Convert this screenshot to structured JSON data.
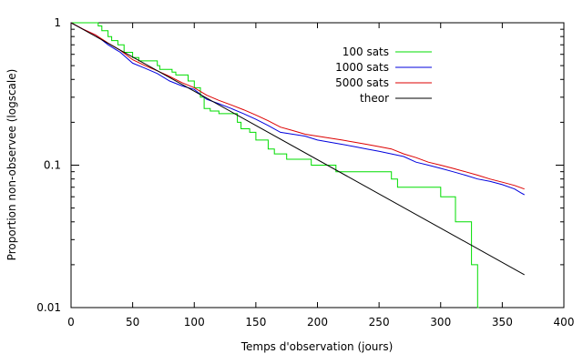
{
  "chart_data": {
    "type": "line",
    "xlabel": "Temps d'observation (jours)",
    "ylabel": "Proportion non-observee (logscale)",
    "xlim": [
      0,
      400
    ],
    "ylim": [
      0.01,
      1
    ],
    "yscale": "log",
    "grid": false,
    "legend_position": "top-right",
    "x_ticks": [
      0,
      50,
      100,
      150,
      200,
      250,
      300,
      350,
      400
    ],
    "x_tick_labels": [
      "0",
      "50",
      "100",
      "150",
      "200",
      "250",
      "300",
      "350",
      "400"
    ],
    "y_ticks": [
      0.01,
      0.1,
      1
    ],
    "y_tick_labels": [
      "0.01",
      "0.1",
      "1"
    ],
    "series": [
      {
        "name": "100 sats",
        "color": "#00dd00",
        "step": true,
        "x": [
          0,
          22,
          25,
          30,
          33,
          38,
          43,
          50,
          55,
          70,
          72,
          82,
          85,
          95,
          100,
          105,
          108,
          113,
          120,
          135,
          138,
          145,
          150,
          160,
          165,
          175,
          190,
          195,
          200,
          215,
          220,
          260,
          262,
          265,
          300,
          305,
          312,
          320,
          325,
          330,
          331
        ],
        "y": [
          1.0,
          0.95,
          0.88,
          0.8,
          0.75,
          0.7,
          0.62,
          0.57,
          0.54,
          0.5,
          0.47,
          0.45,
          0.43,
          0.39,
          0.35,
          0.3,
          0.25,
          0.24,
          0.23,
          0.2,
          0.18,
          0.17,
          0.15,
          0.13,
          0.12,
          0.11,
          0.11,
          0.1,
          0.1,
          0.09,
          0.09,
          0.08,
          0.08,
          0.07,
          0.06,
          0.06,
          0.04,
          0.04,
          0.02,
          0.01,
          0.008
        ]
      },
      {
        "name": "1000 sats",
        "color": "#0000dd",
        "x": [
          0,
          10,
          20,
          30,
          40,
          50,
          60,
          70,
          80,
          90,
          100,
          110,
          120,
          130,
          140,
          150,
          160,
          170,
          180,
          190,
          200,
          210,
          220,
          230,
          240,
          250,
          260,
          270,
          280,
          290,
          300,
          310,
          320,
          330,
          340,
          350,
          360,
          365,
          368
        ],
        "y": [
          1.0,
          0.9,
          0.82,
          0.7,
          0.62,
          0.52,
          0.48,
          0.44,
          0.39,
          0.36,
          0.34,
          0.29,
          0.27,
          0.25,
          0.23,
          0.21,
          0.19,
          0.17,
          0.165,
          0.16,
          0.15,
          0.145,
          0.14,
          0.135,
          0.13,
          0.125,
          0.12,
          0.115,
          0.105,
          0.1,
          0.095,
          0.09,
          0.085,
          0.08,
          0.077,
          0.073,
          0.068,
          0.064,
          0.062
        ]
      },
      {
        "name": "5000 sats",
        "color": "#dd0000",
        "x": [
          0,
          10,
          20,
          30,
          40,
          50,
          60,
          70,
          80,
          90,
          100,
          110,
          120,
          130,
          140,
          150,
          160,
          170,
          180,
          190,
          200,
          210,
          220,
          230,
          240,
          250,
          260,
          270,
          280,
          290,
          300,
          310,
          320,
          330,
          340,
          350,
          360,
          368
        ],
        "y": [
          1.0,
          0.9,
          0.82,
          0.72,
          0.64,
          0.55,
          0.5,
          0.46,
          0.42,
          0.38,
          0.35,
          0.31,
          0.285,
          0.265,
          0.245,
          0.225,
          0.205,
          0.185,
          0.175,
          0.165,
          0.16,
          0.155,
          0.15,
          0.145,
          0.14,
          0.135,
          0.13,
          0.12,
          0.113,
          0.105,
          0.1,
          0.095,
          0.09,
          0.085,
          0.08,
          0.076,
          0.072,
          0.068
        ]
      },
      {
        "name": "theor",
        "color": "#000000",
        "x": [
          0,
          368
        ],
        "y": [
          1.0,
          0.017
        ]
      }
    ]
  }
}
